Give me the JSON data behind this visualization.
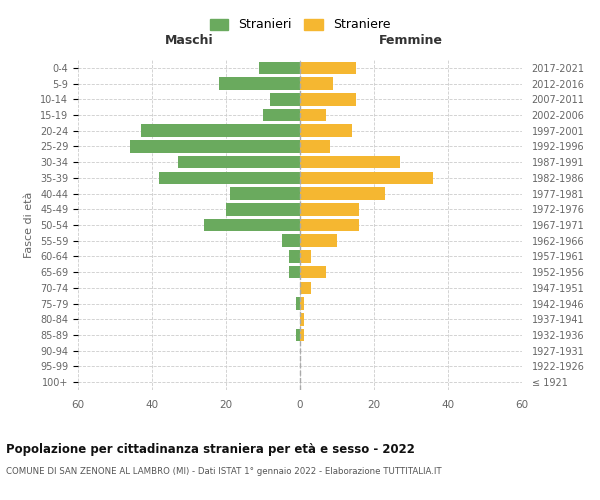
{
  "age_groups": [
    "100+",
    "95-99",
    "90-94",
    "85-89",
    "80-84",
    "75-79",
    "70-74",
    "65-69",
    "60-64",
    "55-59",
    "50-54",
    "45-49",
    "40-44",
    "35-39",
    "30-34",
    "25-29",
    "20-24",
    "15-19",
    "10-14",
    "5-9",
    "0-4"
  ],
  "birth_years": [
    "≤ 1921",
    "1922-1926",
    "1927-1931",
    "1932-1936",
    "1937-1941",
    "1942-1946",
    "1947-1951",
    "1952-1956",
    "1957-1961",
    "1962-1966",
    "1967-1971",
    "1972-1976",
    "1977-1981",
    "1982-1986",
    "1987-1991",
    "1992-1996",
    "1997-2001",
    "2002-2006",
    "2007-2011",
    "2012-2016",
    "2017-2021"
  ],
  "males": [
    0,
    0,
    0,
    1,
    0,
    1,
    0,
    3,
    3,
    5,
    26,
    20,
    19,
    38,
    33,
    46,
    43,
    10,
    8,
    22,
    11
  ],
  "females": [
    0,
    0,
    0,
    1,
    1,
    1,
    3,
    7,
    3,
    10,
    16,
    16,
    23,
    36,
    27,
    8,
    14,
    7,
    15,
    9,
    15
  ],
  "male_color": "#6aaa5e",
  "female_color": "#f5b731",
  "male_label": "Stranieri",
  "female_label": "Straniere",
  "title": "Popolazione per cittadinanza straniera per età e sesso - 2022",
  "subtitle": "COMUNE DI SAN ZENONE AL LAMBRO (MI) - Dati ISTAT 1° gennaio 2022 - Elaborazione TUTTITALIA.IT",
  "xlabel_left": "Maschi",
  "xlabel_right": "Femmine",
  "ylabel_left": "Fasce di età",
  "xlim": 60,
  "background_color": "#ffffff",
  "grid_color": "#cccccc",
  "bar_height": 0.8,
  "dashed_line_color": "#aaaaaa"
}
